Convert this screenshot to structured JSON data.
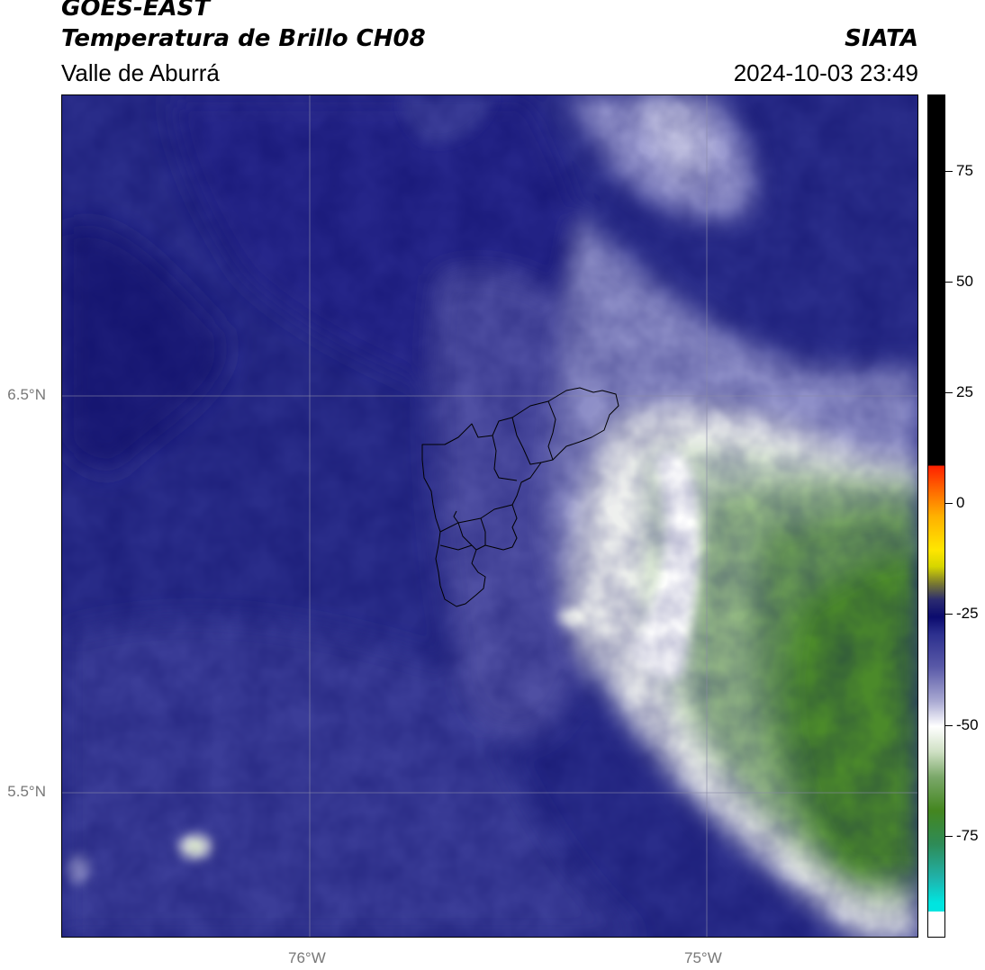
{
  "header": {
    "satellite": "GOES-EAST",
    "product": "Temperatura de Brillo CH08",
    "organization": "SIATA",
    "region": "Valle de Aburrá",
    "datetime": "2024-10-03 23:49"
  },
  "map": {
    "lat_labels": [
      "6.5°N",
      "5.5°N"
    ],
    "lon_labels": [
      "76°W",
      "75°W"
    ],
    "colors": {
      "deep_cold_blue": "#141c6e",
      "mid_blue": "#2c2f8e",
      "light_blue": "#5a5aa8",
      "lavender": "#a9a9d2",
      "white": "#ffffff",
      "pale_green": "#cfe0c4",
      "green": "#7ba86a",
      "dark_green": "#44861f"
    }
  },
  "colorbar": {
    "ticks": [
      "75",
      "50",
      "25",
      "0",
      "-25",
      "-50",
      "-75"
    ],
    "tick_values": [
      75,
      50,
      25,
      0,
      -25,
      -50,
      -75
    ],
    "range": [
      -92,
      92
    ]
  }
}
